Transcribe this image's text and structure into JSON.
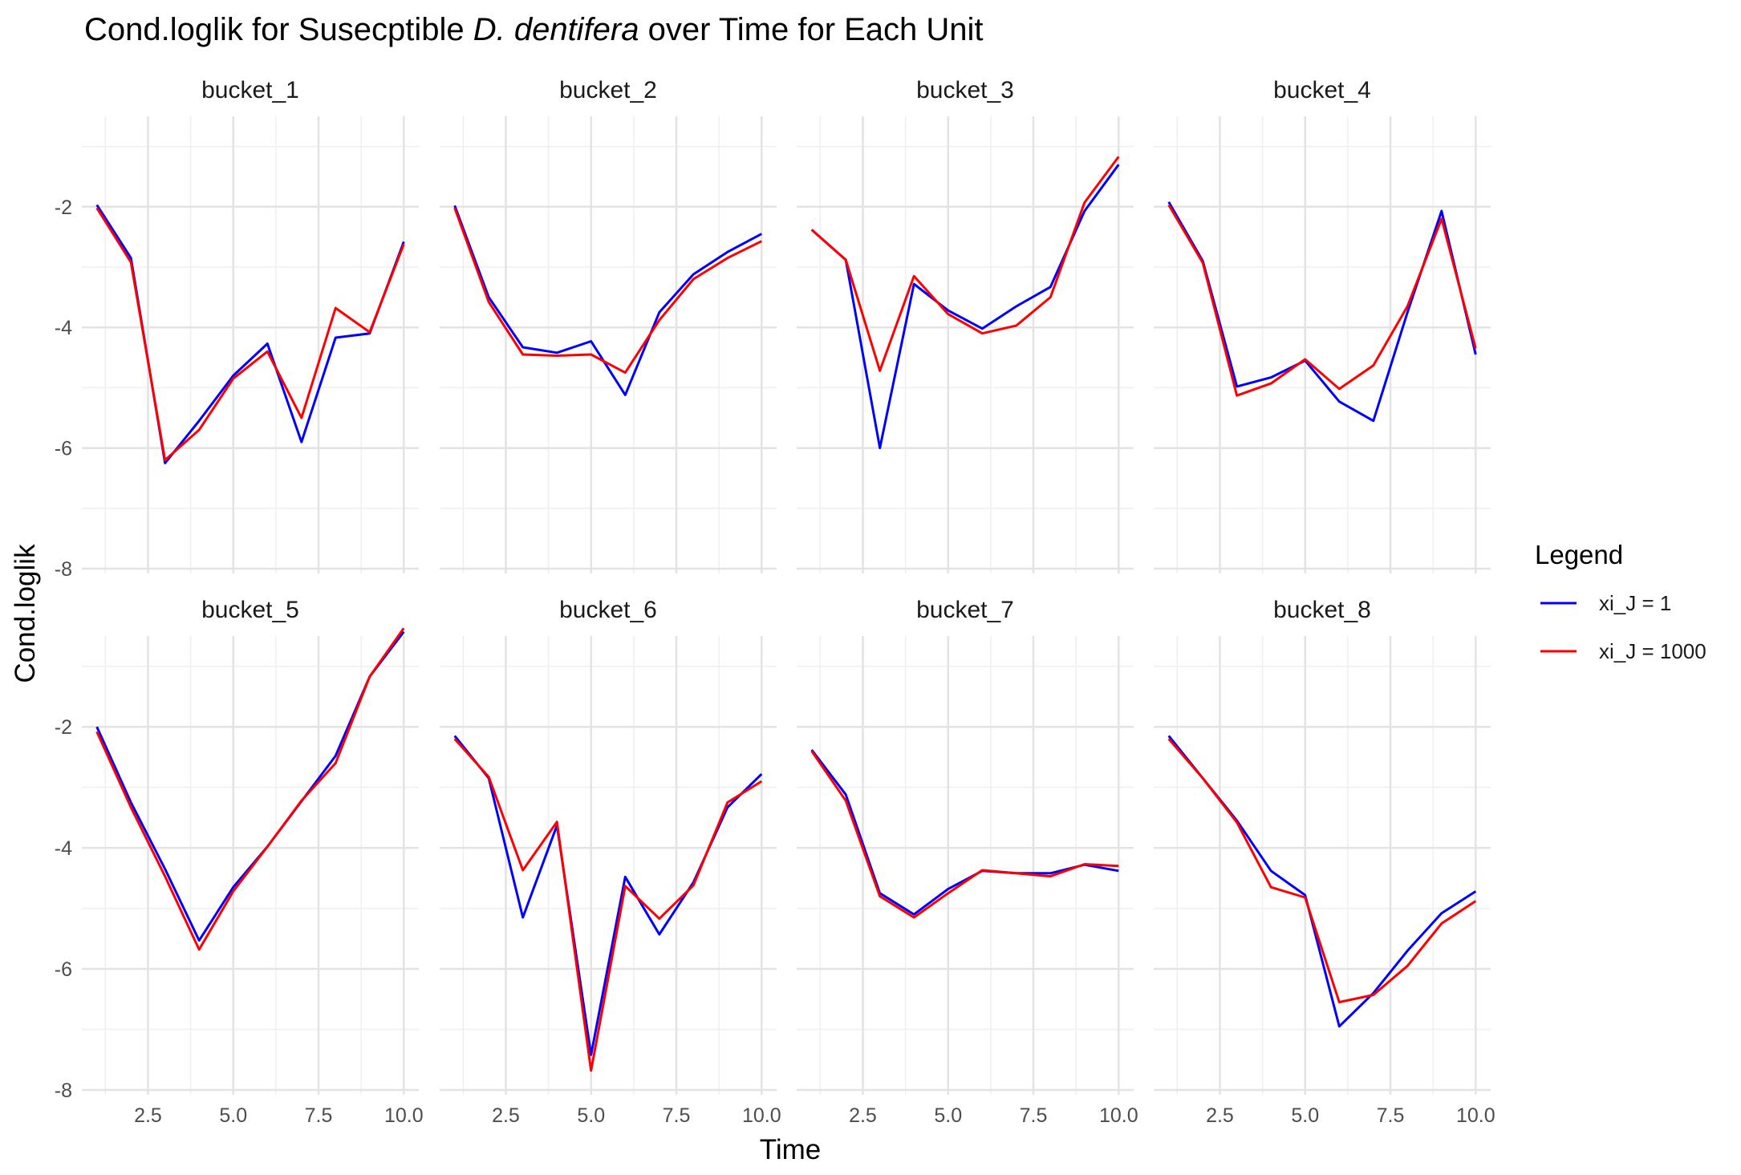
{
  "chart_data": {
    "type": "line",
    "title_parts": [
      "Cond.loglik for Susecptible ",
      "D. dentifera",
      " over Time for Each Unit"
    ],
    "xlabel": "Time",
    "ylabel": "Cond.loglik",
    "xlim": [
      1,
      10
    ],
    "ylim": [
      -8,
      -0.5
    ],
    "x_ticks": [
      2.5,
      5.0,
      7.5,
      10.0
    ],
    "x_tick_labels": [
      "2.5",
      "5.0",
      "7.5",
      "10.0"
    ],
    "y_ticks": [
      -8,
      -6,
      -4,
      -2
    ],
    "y_tick_labels": [
      "-8",
      "-6",
      "-4",
      "-2"
    ],
    "grid": true,
    "legend": {
      "title": "Legend",
      "placement": "right",
      "entries": [
        {
          "label": "xi_J = 1",
          "color": "#0000ff"
        },
        {
          "label": "xi_J = 1000",
          "color": "#ff0000"
        }
      ]
    },
    "x": [
      1,
      2,
      3,
      4,
      5,
      6,
      7,
      8,
      9,
      10
    ],
    "panels": [
      {
        "name": "bucket_1",
        "series": [
          {
            "name": "xi_J = 1",
            "color": "#0000ff",
            "values": [
              -1.97,
              -2.85,
              -6.25,
              -5.55,
              -4.8,
              -4.27,
              -5.9,
              -4.17,
              -4.1,
              -2.58
            ]
          },
          {
            "name": "xi_J = 1000",
            "color": "#ff0000",
            "values": [
              -2.02,
              -2.92,
              -6.2,
              -5.7,
              -4.85,
              -4.4,
              -5.5,
              -3.68,
              -4.08,
              -2.62
            ]
          }
        ]
      },
      {
        "name": "bucket_2",
        "series": [
          {
            "name": "xi_J = 1",
            "color": "#0000ff",
            "values": [
              -1.98,
              -3.5,
              -4.33,
              -4.42,
              -4.23,
              -5.12,
              -3.75,
              -3.12,
              -2.75,
              -2.45
            ]
          },
          {
            "name": "xi_J = 1000",
            "color": "#ff0000",
            "values": [
              -2.02,
              -3.58,
              -4.45,
              -4.47,
              -4.45,
              -4.75,
              -3.88,
              -3.2,
              -2.85,
              -2.57
            ]
          }
        ]
      },
      {
        "name": "bucket_3",
        "series": [
          {
            "name": "xi_J = 1",
            "color": "#0000ff",
            "values": [
              -2.38,
              -2.88,
              -6.0,
              -3.28,
              -3.72,
              -4.02,
              -3.65,
              -3.33,
              -2.07,
              -1.3
            ]
          },
          {
            "name": "xi_J = 1000",
            "color": "#ff0000",
            "values": [
              -2.38,
              -2.88,
              -4.72,
              -3.15,
              -3.78,
              -4.1,
              -3.97,
              -3.5,
              -1.93,
              -1.17
            ]
          }
        ]
      },
      {
        "name": "bucket_4",
        "series": [
          {
            "name": "xi_J = 1",
            "color": "#0000ff",
            "values": [
              -1.92,
              -2.9,
              -4.98,
              -4.83,
              -4.55,
              -5.23,
              -5.55,
              -3.75,
              -2.07,
              -4.45
            ]
          },
          {
            "name": "xi_J = 1000",
            "color": "#ff0000",
            "values": [
              -1.97,
              -2.93,
              -5.13,
              -4.93,
              -4.53,
              -5.02,
              -4.63,
              -3.65,
              -2.2,
              -4.35
            ]
          }
        ]
      },
      {
        "name": "bucket_5",
        "series": [
          {
            "name": "xi_J = 1",
            "color": "#0000ff",
            "values": [
              -2.0,
              -3.25,
              -4.35,
              -5.53,
              -4.65,
              -3.98,
              -3.23,
              -2.48,
              -1.17,
              -0.43
            ]
          },
          {
            "name": "xi_J = 1000",
            "color": "#ff0000",
            "values": [
              -2.08,
              -3.33,
              -4.47,
              -5.68,
              -4.72,
              -3.98,
              -3.22,
              -2.6,
              -1.17,
              -0.37
            ]
          }
        ]
      },
      {
        "name": "bucket_6",
        "series": [
          {
            "name": "xi_J = 1",
            "color": "#0000ff",
            "values": [
              -2.15,
              -2.85,
              -5.15,
              -3.63,
              -7.42,
              -4.48,
              -5.43,
              -4.57,
              -3.33,
              -2.78
            ]
          },
          {
            "name": "xi_J = 1000",
            "color": "#ff0000",
            "values": [
              -2.2,
              -2.83,
              -4.37,
              -3.57,
              -7.68,
              -4.63,
              -5.17,
              -4.62,
              -3.25,
              -2.9
            ]
          }
        ]
      },
      {
        "name": "bucket_7",
        "series": [
          {
            "name": "xi_J = 1",
            "color": "#0000ff",
            "values": [
              -2.38,
              -3.12,
              -4.75,
              -5.1,
              -4.68,
              -4.38,
              -4.42,
              -4.42,
              -4.28,
              -4.38
            ]
          },
          {
            "name": "xi_J = 1000",
            "color": "#ff0000",
            "values": [
              -2.4,
              -3.22,
              -4.8,
              -5.15,
              -4.75,
              -4.37,
              -4.42,
              -4.47,
              -4.27,
              -4.3
            ]
          }
        ]
      },
      {
        "name": "bucket_8",
        "series": [
          {
            "name": "xi_J = 1",
            "color": "#0000ff",
            "values": [
              -2.15,
              -2.85,
              -3.55,
              -4.38,
              -4.78,
              -6.95,
              -6.4,
              -5.7,
              -5.08,
              -4.72
            ]
          },
          {
            "name": "xi_J = 1000",
            "color": "#ff0000",
            "values": [
              -2.2,
              -2.85,
              -3.58,
              -4.65,
              -4.82,
              -6.55,
              -6.43,
              -5.95,
              -5.25,
              -4.88
            ]
          }
        ]
      }
    ]
  }
}
